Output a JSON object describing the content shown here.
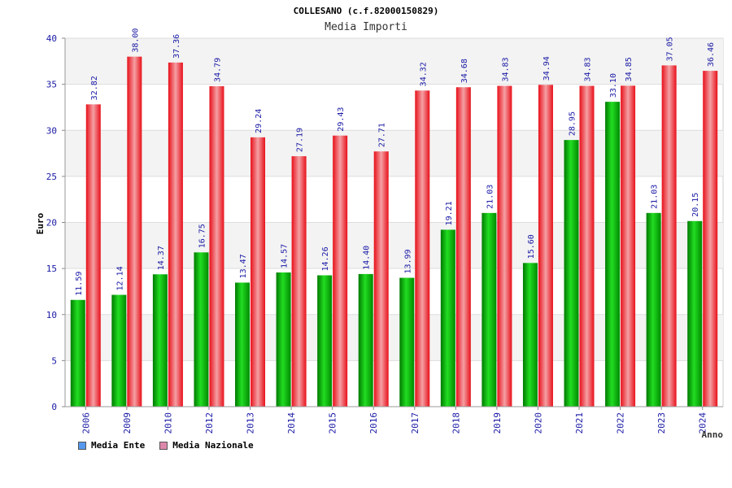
{
  "chart_data": {
    "type": "bar",
    "title": "COLLESANO (c.f.82000150829)",
    "subtitle": "Media Importi",
    "xlabel": "Anno",
    "ylabel": "Euro",
    "ylim": [
      0,
      40
    ],
    "yticks": [
      0,
      5,
      10,
      15,
      20,
      25,
      30,
      35,
      40
    ],
    "grid": true,
    "legend_position": "bottom-left",
    "categories": [
      "2006",
      "2009",
      "2010",
      "2012",
      "2013",
      "2014",
      "2015",
      "2016",
      "2017",
      "2018",
      "2019",
      "2020",
      "2021",
      "2022",
      "2023",
      "2024"
    ],
    "series": [
      {
        "name": "Media Ente",
        "color": "#00b000",
        "legend_color": "#5599ee",
        "values": [
          11.59,
          12.14,
          14.37,
          16.75,
          13.47,
          14.57,
          14.26,
          14.4,
          13.99,
          19.21,
          21.03,
          15.6,
          28.95,
          33.1,
          21.03,
          20.15
        ],
        "labels": [
          "11.59",
          "12.14",
          "14.37",
          "16.75",
          "13.47",
          "14.57",
          "14.26",
          "14.40",
          "13.99",
          "19.21",
          "21.03",
          "15.60",
          "28.95",
          "33.10",
          "21.03",
          "20.15"
        ]
      },
      {
        "name": "Media Nazionale",
        "color": "#e8101a",
        "legend_color": "#dd88aa",
        "values": [
          32.82,
          38.0,
          37.36,
          34.79,
          29.24,
          27.19,
          29.43,
          27.71,
          34.32,
          34.68,
          34.83,
          34.94,
          34.83,
          34.85,
          37.05,
          36.46
        ],
        "labels": [
          "32.82",
          "38.00",
          "37.36",
          "34.79",
          "29.24",
          "27.19",
          "29.43",
          "27.71",
          "34.32",
          "34.68",
          "34.83",
          "34.94",
          "34.83",
          "34.85",
          "37.05",
          "36.46"
        ]
      }
    ]
  }
}
